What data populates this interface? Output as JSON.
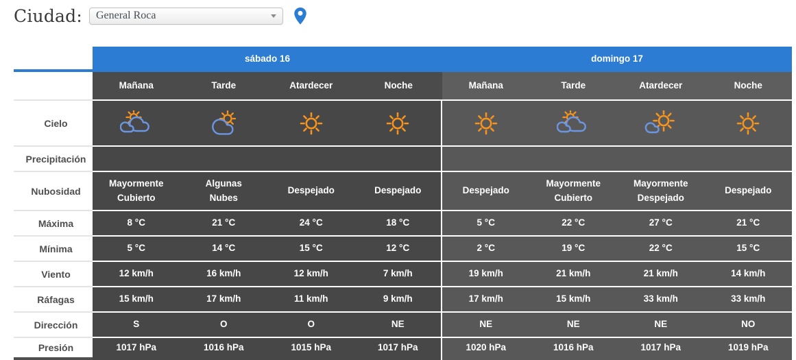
{
  "header": {
    "city_label": "Ciudad:",
    "city_value": "General Roca"
  },
  "colors": {
    "accent_blue": "#2c7cd3",
    "pin_blue": "#2a7cd4",
    "day1_bg": "#474747",
    "day1_subheader_bg": "#4b4b4b",
    "day2_bg": "#585858",
    "day2_subheader_bg": "#5e5e5e",
    "label_text": "#4e4e4e",
    "label_separator": "#e4e4e4",
    "sun_orange": "#f7941e",
    "cloud_blue": "#6c96e3"
  },
  "table": {
    "days": [
      {
        "label": "sábado 16",
        "periods": [
          "Mañana",
          "Tarde",
          "Atardecer",
          "Noche"
        ]
      },
      {
        "label": "domingo 17",
        "periods": [
          "Mañana",
          "Tarde",
          "Atardecer",
          "Noche"
        ]
      }
    ],
    "rows": [
      {
        "label": "Cielo",
        "type": "icons",
        "values": [
          "sun-behind-clouds-icon",
          "sun-behind-cloud-icon",
          "sun-icon",
          "sun-icon",
          "sun-icon",
          "sun-behind-clouds-icon",
          "sun-with-small-cloud-icon",
          "sun-icon"
        ]
      },
      {
        "label": "Precipitación",
        "type": "text",
        "values": [
          "",
          "",
          "",
          "",
          "",
          "",
          "",
          ""
        ]
      },
      {
        "label": "Nubosidad",
        "type": "text",
        "values": [
          "Mayormente Cubierto",
          "Algunas Nubes",
          "Despejado",
          "Despejado",
          "Despejado",
          "Mayormente Cubierto",
          "Mayormente Despejado",
          "Despejado"
        ]
      },
      {
        "label": "Máxima",
        "type": "text",
        "values": [
          "8 °C",
          "21 °C",
          "24 °C",
          "18 °C",
          "5 °C",
          "22 °C",
          "27 °C",
          "21 °C"
        ]
      },
      {
        "label": "Mínima",
        "type": "text",
        "values": [
          "5 °C",
          "14 °C",
          "15 °C",
          "12 °C",
          "2 °C",
          "19 °C",
          "22 °C",
          "15 °C"
        ]
      },
      {
        "label": "Viento",
        "type": "text",
        "values": [
          "12 km/h",
          "16 km/h",
          "12 km/h",
          "7 km/h",
          "19 km/h",
          "21 km/h",
          "21 km/h",
          "14 km/h"
        ]
      },
      {
        "label": "Ráfagas",
        "type": "text",
        "values": [
          "15 km/h",
          "17 km/h",
          "11 km/h",
          "9 km/h",
          "17 km/h",
          "15 km/h",
          "33 km/h",
          "33 km/h"
        ]
      },
      {
        "label": "Dirección",
        "type": "text",
        "values": [
          "S",
          "O",
          "O",
          "NE",
          "NE",
          "NE",
          "NE",
          "NO"
        ]
      },
      {
        "label": "Presión",
        "type": "text",
        "values": [
          "1017 hPa",
          "1016 hPa",
          "1015 hPa",
          "1017 hPa",
          "1020 hPa",
          "1016 hPa",
          "1017 hPa",
          "1019 hPa"
        ]
      }
    ]
  }
}
